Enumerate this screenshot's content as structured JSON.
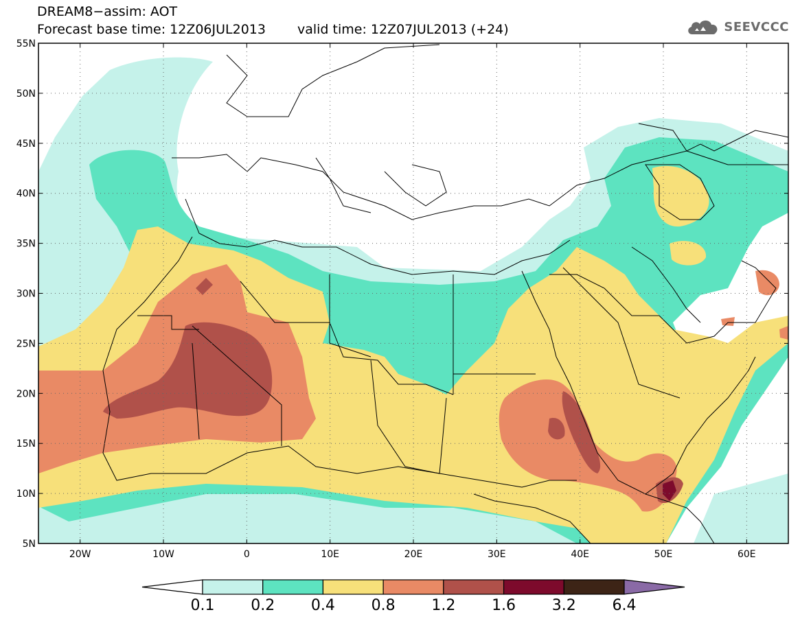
{
  "header": {
    "title_line1": "DREAM8−assim: AOT",
    "base_time": "Forecast base time: 12Z06JUL2013",
    "valid_time": "valid time: 12Z07JUL2013 (+24)",
    "logo_text": "SEEVCCC",
    "logo_icon": "cloud-logo-icon"
  },
  "map": {
    "lon_range": [
      -25,
      65
    ],
    "lat_range": [
      5,
      55
    ],
    "lon_ticks": [
      {
        "v": -20,
        "label": "20W"
      },
      {
        "v": -10,
        "label": "10W"
      },
      {
        "v": 0,
        "label": "0"
      },
      {
        "v": 10,
        "label": "10E"
      },
      {
        "v": 20,
        "label": "20E"
      },
      {
        "v": 30,
        "label": "30E"
      },
      {
        "v": 40,
        "label": "40E"
      },
      {
        "v": 50,
        "label": "50E"
      },
      {
        "v": 60,
        "label": "60E"
      }
    ],
    "lat_ticks": [
      {
        "v": 5,
        "label": "5N"
      },
      {
        "v": 10,
        "label": "10N"
      },
      {
        "v": 15,
        "label": "15N"
      },
      {
        "v": 20,
        "label": "20N"
      },
      {
        "v": 25,
        "label": "25N"
      },
      {
        "v": 30,
        "label": "30N"
      },
      {
        "v": 35,
        "label": "35N"
      },
      {
        "v": 40,
        "label": "40N"
      },
      {
        "v": 45,
        "label": "45N"
      },
      {
        "v": 50,
        "label": "50N"
      },
      {
        "v": 55,
        "label": "55N"
      }
    ],
    "grid_dotted": true
  },
  "colorbar": {
    "levels": [
      "0.1",
      "0.2",
      "0.4",
      "0.8",
      "1.2",
      "1.6",
      "3.2",
      "6.4"
    ],
    "colors": [
      "#ffffff",
      "#c5f2ea",
      "#5de3c0",
      "#f7e07a",
      "#e98a65",
      "#b0514a",
      "#7d0a2c",
      "#3d2416",
      "#8a6aa6"
    ]
  }
}
